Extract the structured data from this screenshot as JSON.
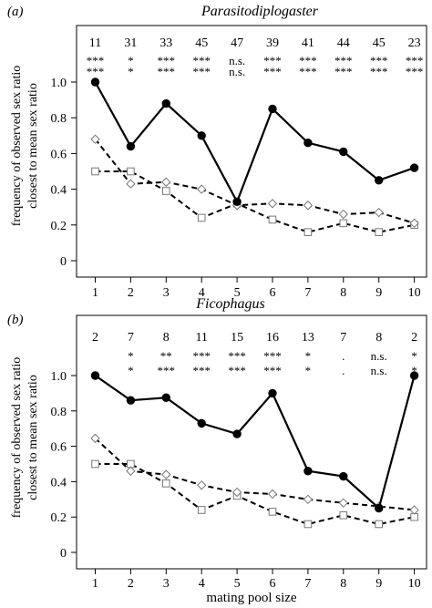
{
  "chart_data": [
    {
      "type": "line",
      "panel_label": "(a)",
      "title": "Parasitodiplogaster",
      "ylabel_line1": "frequency of observed sex ratio",
      "ylabel_line2": "closest to mean sex ratio",
      "xlabel": "",
      "x": [
        1,
        2,
        3,
        4,
        5,
        6,
        7,
        8,
        9,
        10
      ],
      "x_ticks": [
        "1",
        "2",
        "3",
        "4",
        "5",
        "6",
        "7",
        "8",
        "9",
        "10"
      ],
      "y_ticks": [
        "0",
        "0.2",
        "0.4",
        "0.6",
        "0.8",
        "1.0"
      ],
      "ylim": [
        0,
        1.0
      ],
      "sample_sizes": [
        "11",
        "31",
        "33",
        "45",
        "47",
        "39",
        "41",
        "44",
        "45",
        "23"
      ],
      "sig_row1": [
        "***",
        "*",
        "***",
        "***",
        "n.s.",
        "***",
        "***",
        "***",
        "***",
        "***"
      ],
      "sig_row2": [
        "***",
        "*",
        "***",
        "***",
        "n.s.",
        "***",
        "***",
        "***",
        "***",
        "***"
      ],
      "series": [
        {
          "style": "solid",
          "marker": "filled-circle",
          "values": [
            1.0,
            0.64,
            0.88,
            0.7,
            0.33,
            0.85,
            0.66,
            0.61,
            0.45,
            0.52
          ]
        },
        {
          "style": "dashed",
          "marker": "open-diamond",
          "values": [
            0.68,
            0.43,
            0.44,
            0.4,
            0.31,
            0.32,
            0.31,
            0.26,
            0.27,
            0.21
          ]
        },
        {
          "style": "dashed",
          "marker": "open-square",
          "values": [
            0.5,
            0.5,
            0.39,
            0.24,
            0.32,
            0.23,
            0.16,
            0.21,
            0.16,
            0.2
          ]
        }
      ]
    },
    {
      "type": "line",
      "panel_label": "(b)",
      "title": "Ficophagus",
      "ylabel_line1": "frequency of observed sex ratio",
      "ylabel_line2": "closest to mean sex ratio",
      "xlabel": "mating pool size",
      "x": [
        1,
        2,
        3,
        4,
        5,
        6,
        7,
        8,
        9,
        10
      ],
      "x_ticks": [
        "1",
        "2",
        "3",
        "4",
        "5",
        "6",
        "7",
        "8",
        "9",
        "10"
      ],
      "y_ticks": [
        "0",
        "0.2",
        "0.4",
        "0.6",
        "0.8",
        "1.0"
      ],
      "ylim": [
        0,
        1.0
      ],
      "sample_sizes": [
        "2",
        "7",
        "8",
        "11",
        "15",
        "16",
        "13",
        "7",
        "8",
        "2"
      ],
      "sig_row1": [
        "",
        "*",
        "**",
        "***",
        "***",
        "***",
        "*",
        ".",
        "n.s.",
        "*"
      ],
      "sig_row2": [
        "",
        "*",
        "***",
        "***",
        "***",
        "***",
        "*",
        ".",
        "n.s.",
        "*"
      ],
      "series": [
        {
          "style": "solid",
          "marker": "filled-circle",
          "values": [
            1.0,
            0.86,
            0.875,
            0.73,
            0.67,
            0.9,
            0.46,
            0.43,
            0.25,
            1.0
          ]
        },
        {
          "style": "dashed",
          "marker": "open-diamond",
          "values": [
            0.645,
            0.46,
            0.44,
            0.38,
            0.34,
            0.33,
            0.3,
            0.28,
            0.26,
            0.24
          ]
        },
        {
          "style": "dashed",
          "marker": "open-square",
          "values": [
            0.5,
            0.5,
            0.39,
            0.24,
            0.32,
            0.23,
            0.16,
            0.21,
            0.16,
            0.2
          ]
        }
      ]
    }
  ]
}
